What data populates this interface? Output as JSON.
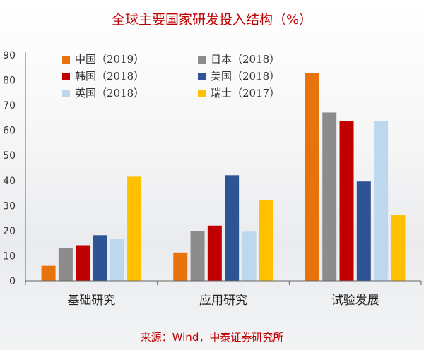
{
  "title": "全球主要国家研发投入结构（%）",
  "source": "来源：Wind，中泰证券研究所",
  "chart_data": {
    "type": "bar",
    "categories": [
      "基础研究",
      "应用研究",
      "试验发展"
    ],
    "ylim": [
      0,
      90
    ],
    "yticks": [
      "0",
      "10",
      "20",
      "30",
      "40",
      "50",
      "60",
      "70",
      "80",
      "90"
    ],
    "legend_position": "top-left",
    "series": [
      {
        "name": "中国（2019）",
        "color": "#e8730c",
        "values": [
          6.0,
          11.3,
          82.7
        ]
      },
      {
        "name": "日本（2018）",
        "color": "#8c8c8c",
        "values": [
          13.1,
          19.8,
          67.1
        ]
      },
      {
        "name": "韩国（2018）",
        "color": "#c00000",
        "values": [
          14.2,
          22.0,
          63.8
        ]
      },
      {
        "name": "美国（2018）",
        "color": "#2f5496",
        "values": [
          18.2,
          42.1,
          39.6
        ]
      },
      {
        "name": "英国（2018）",
        "color": "#bdd7ee",
        "values": [
          16.7,
          19.6,
          63.7
        ]
      },
      {
        "name": "瑞士（2017）",
        "color": "#ffc000",
        "values": [
          41.5,
          32.3,
          26.2
        ]
      }
    ]
  }
}
